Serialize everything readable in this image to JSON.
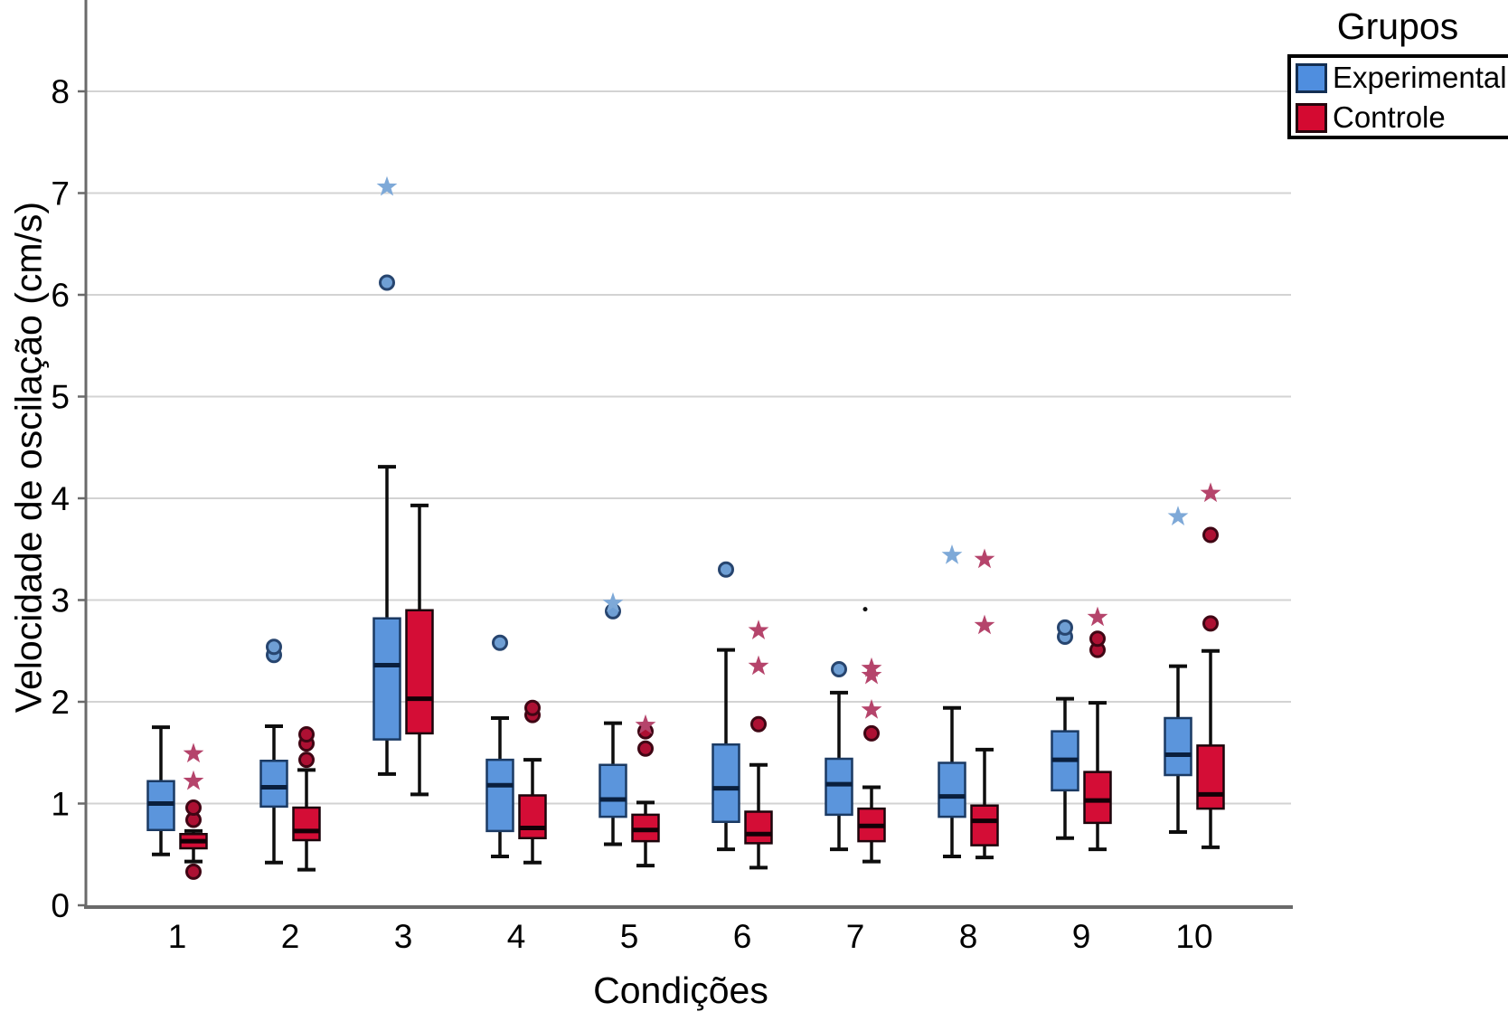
{
  "chart_data": {
    "type": "grouped_boxplot",
    "xlabel": "Condições",
    "ylabel": "Velocidade de oscilação (cm/s)",
    "x_categories": [
      "1",
      "2",
      "3",
      "4",
      "5",
      "6",
      "7",
      "8",
      "9",
      "10"
    ],
    "y_ticks": [
      0,
      1,
      2,
      3,
      4,
      5,
      6,
      7,
      8
    ],
    "ylim": [
      0,
      8.9
    ],
    "grid": "horizontal",
    "legend": {
      "title": "Grupos",
      "position": "top-right",
      "entries": [
        {
          "label": "Experimental",
          "color": "#4f8edf"
        },
        {
          "label": "Controle",
          "color": "#d40a31"
        }
      ]
    },
    "style": {
      "experimental_fill": "#5b95dc",
      "experimental_stroke": "#1b3a63",
      "experimental_median": "#0a1f3d",
      "experimental_outlier_fill": "#6f9fd4",
      "experimental_outlier_stroke": "#27456f",
      "experimental_extreme_color": "#7ea9d8",
      "controle_fill": "#d40d36",
      "controle_stroke": "#1c050b",
      "controle_median": "#120107",
      "controle_outlier_fill": "#ad1033",
      "controle_outlier_stroke": "#3f0614",
      "controle_extreme_color": "#b5446b",
      "whisker_color": "#0d0d0d",
      "grid_color": "#d3d3d3",
      "axis_color": "#6a6a6a",
      "text_color": "#000000"
    },
    "series": [
      {
        "name": "Experimental",
        "boxes": [
          {
            "category": "1",
            "low": 0.5,
            "q1": 0.74,
            "median": 1.0,
            "q3": 1.22,
            "high": 1.75,
            "outliers": [],
            "extremes": [],
            "dots": []
          },
          {
            "category": "2",
            "low": 0.42,
            "q1": 0.97,
            "median": 1.16,
            "q3": 1.42,
            "high": 1.76,
            "outliers": [
              2.46,
              2.54
            ],
            "extremes": [],
            "dots": []
          },
          {
            "category": "3",
            "low": 1.29,
            "q1": 1.63,
            "median": 2.36,
            "q3": 2.82,
            "high": 4.31,
            "outliers": [
              6.12
            ],
            "extremes": [
              7.06
            ],
            "dots": []
          },
          {
            "category": "4",
            "low": 0.48,
            "q1": 0.73,
            "median": 1.18,
            "q3": 1.43,
            "high": 1.84,
            "outliers": [
              2.58
            ],
            "extremes": [],
            "dots": []
          },
          {
            "category": "5",
            "low": 0.6,
            "q1": 0.87,
            "median": 1.04,
            "q3": 1.38,
            "high": 1.79,
            "outliers": [
              2.89
            ],
            "extremes": [
              2.97
            ],
            "dots": []
          },
          {
            "category": "6",
            "low": 0.55,
            "q1": 0.82,
            "median": 1.15,
            "q3": 1.58,
            "high": 2.51,
            "outliers": [
              3.3
            ],
            "extremes": [],
            "dots": []
          },
          {
            "category": "7",
            "low": 0.55,
            "q1": 0.89,
            "median": 1.19,
            "q3": 1.44,
            "high": 2.09,
            "outliers": [
              2.32
            ],
            "extremes": [],
            "dots": []
          },
          {
            "category": "8",
            "low": 0.48,
            "q1": 0.87,
            "median": 1.07,
            "q3": 1.4,
            "high": 1.94,
            "outliers": [],
            "extremes": [
              3.44
            ],
            "dots": []
          },
          {
            "category": "9",
            "low": 0.66,
            "q1": 1.13,
            "median": 1.43,
            "q3": 1.71,
            "high": 2.03,
            "outliers": [
              2.64,
              2.73
            ],
            "extremes": [],
            "dots": []
          },
          {
            "category": "10",
            "low": 0.72,
            "q1": 1.28,
            "median": 1.48,
            "q3": 1.84,
            "high": 2.35,
            "outliers": [],
            "extremes": [
              3.82
            ],
            "dots": []
          }
        ]
      },
      {
        "name": "Controle",
        "boxes": [
          {
            "category": "1",
            "low": 0.43,
            "q1": 0.56,
            "median": 0.63,
            "q3": 0.7,
            "high": 0.73,
            "outliers": [
              0.33,
              0.84,
              0.96
            ],
            "extremes": [
              1.22,
              1.49
            ],
            "dots": []
          },
          {
            "category": "2",
            "low": 0.35,
            "q1": 0.64,
            "median": 0.73,
            "q3": 0.96,
            "high": 1.33,
            "outliers": [
              1.43,
              1.59,
              1.68
            ],
            "extremes": [],
            "dots": []
          },
          {
            "category": "3",
            "low": 1.09,
            "q1": 1.69,
            "median": 2.03,
            "q3": 2.9,
            "high": 3.93,
            "outliers": [],
            "extremes": [],
            "dots": []
          },
          {
            "category": "4",
            "low": 0.42,
            "q1": 0.66,
            "median": 0.76,
            "q3": 1.08,
            "high": 1.43,
            "outliers": [
              1.87,
              1.94
            ],
            "extremes": [],
            "dots": []
          },
          {
            "category": "5",
            "low": 0.39,
            "q1": 0.63,
            "median": 0.74,
            "q3": 0.89,
            "high": 1.01,
            "outliers": [
              1.54,
              1.71
            ],
            "extremes": [
              1.77
            ],
            "dots": []
          },
          {
            "category": "6",
            "low": 0.37,
            "q1": 0.61,
            "median": 0.7,
            "q3": 0.92,
            "high": 1.38,
            "outliers": [
              1.78
            ],
            "extremes": [
              2.35,
              2.7
            ],
            "dots": []
          },
          {
            "category": "7",
            "low": 0.43,
            "q1": 0.63,
            "median": 0.78,
            "q3": 0.95,
            "high": 1.16,
            "outliers": [
              1.69
            ],
            "extremes": [
              1.92,
              2.26,
              2.33
            ],
            "dots": [
              2.91
            ]
          },
          {
            "category": "8",
            "low": 0.47,
            "q1": 0.59,
            "median": 0.83,
            "q3": 0.98,
            "high": 1.53,
            "outliers": [],
            "extremes": [
              2.75,
              3.4
            ],
            "dots": []
          },
          {
            "category": "9",
            "low": 0.55,
            "q1": 0.81,
            "median": 1.03,
            "q3": 1.31,
            "high": 1.99,
            "outliers": [
              2.51,
              2.62
            ],
            "extremes": [
              2.83
            ],
            "dots": []
          },
          {
            "category": "10",
            "low": 0.57,
            "q1": 0.95,
            "median": 1.09,
            "q3": 1.57,
            "high": 2.5,
            "outliers": [
              2.77,
              3.64
            ],
            "extremes": [
              4.05
            ],
            "dots": []
          }
        ]
      }
    ]
  }
}
